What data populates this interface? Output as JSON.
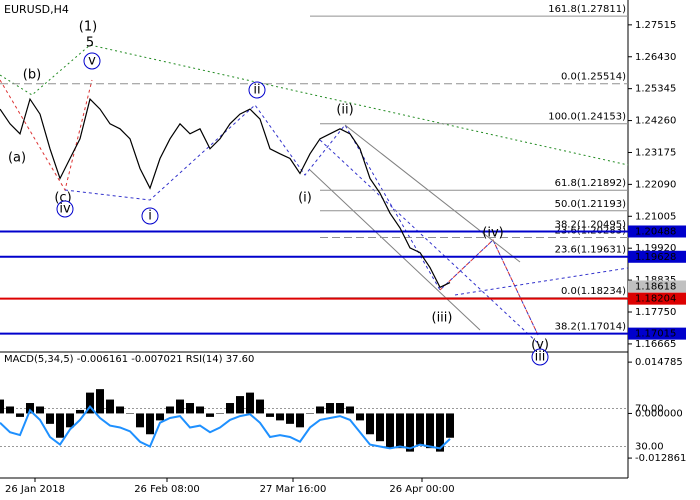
{
  "chart_data": {
    "type": "line",
    "title": "EURUSD,H4",
    "values": [
      1.2465,
      1.2415,
      1.2381,
      1.2499,
      1.2448,
      1.233,
      1.2229,
      1.2297,
      1.2364,
      1.2499,
      1.2465,
      1.2415,
      1.2398,
      1.2364,
      1.2263,
      1.2196,
      1.2297,
      1.2364,
      1.2415,
      1.2381,
      1.2398,
      1.233,
      1.2364,
      1.2415,
      1.2448,
      1.2465,
      1.2431,
      1.233,
      1.2313,
      1.2297,
      1.2246,
      1.2313,
      1.2364,
      1.2381,
      1.2398,
      1.2381,
      1.233,
      1.2229,
      1.2179,
      1.2111,
      1.2061,
      1.1993,
      1.1977,
      1.1926,
      1.1859,
      1.1875
    ],
    "color": "#000000",
    "xlim": [
      0,
      62.8
    ],
    "xticks": [
      {
        "value": 3.5,
        "label": "26 Jan 2018"
      },
      {
        "value": 16.7,
        "label": "26 Feb 08:00"
      },
      {
        "value": 29.3,
        "label": "27 Mar 16:00"
      },
      {
        "value": 42.2,
        "label": "26 Apr 00:00"
      }
    ],
    "ylim": [
      1.1639,
      1.2836
    ],
    "yticks": [
      {
        "value": 1.27515,
        "label": "1.27515"
      },
      {
        "value": 1.2643,
        "label": "1.26430"
      },
      {
        "value": 1.25345,
        "label": "1.25345"
      },
      {
        "value": 1.2426,
        "label": "1.24260"
      },
      {
        "value": 1.23175,
        "label": "1.23175"
      },
      {
        "value": 1.2209,
        "label": "1.22090"
      },
      {
        "value": 1.21005,
        "label": "1.21005"
      },
      {
        "value": 1.1992,
        "label": "1.19920"
      },
      {
        "value": 1.18835,
        "label": "1.18835"
      },
      {
        "value": 1.1775,
        "label": "1.17750"
      },
      {
        "value": 1.16665,
        "label": "1.16665"
      }
    ],
    "levels": [
      {
        "value": 1.20488,
        "label": "1.20488",
        "color": "#0000cc"
      },
      {
        "value": 1.19628,
        "label": "1.19628",
        "color": "#0000cc"
      },
      {
        "value": 1.18618,
        "label": "1.18618",
        "color": "#c0c0c0"
      },
      {
        "value": 1.18204,
        "label": "1.18204",
        "color": "#dd0000"
      },
      {
        "value": 1.17015,
        "label": "1.17015",
        "color": "#0000cc"
      }
    ],
    "fib_levels": [
      {
        "value": 1.27811,
        "label": "161.8(1.27811)"
      },
      {
        "value": 1.25514,
        "label": "0.0(1.25514)"
      },
      {
        "value": 1.24153,
        "label": "100.0(1.24153)"
      },
      {
        "value": 1.21892,
        "label": "61.8(1.21892)"
      },
      {
        "value": 1.21193,
        "label": "50.0(1.21193)"
      },
      {
        "value": 1.20495,
        "label": "38.2(1.20495)"
      },
      {
        "value": 1.20283,
        "label": "23.6(1.20283)"
      },
      {
        "value": 1.19631,
        "label": "23.6(1.19631)"
      },
      {
        "value": 1.18234,
        "label": "0.0(1.18234)"
      },
      {
        "value": 1.17014,
        "label": "38.2(1.17014)"
      }
    ],
    "wave_labels": [
      {
        "text": "(1)",
        "color": "#228b22"
      },
      {
        "text": "5",
        "color": "#cc0000"
      },
      {
        "text": "(b)",
        "color": "#cc0000"
      },
      {
        "text": "v",
        "color": "#0000cc"
      },
      {
        "text": "(a)",
        "color": "#cc0000"
      },
      {
        "text": "(c)",
        "color": "#cc0000"
      },
      {
        "text": "iv",
        "color": "#0000cc"
      },
      {
        "text": "i",
        "color": "#0000cc"
      },
      {
        "text": "ii",
        "color": "#0000cc"
      },
      {
        "text": "(i)",
        "color": "#cc0000"
      },
      {
        "text": "(ii)",
        "color": "#cc0000"
      },
      {
        "text": "(iii)",
        "color": "#cc0000"
      },
      {
        "text": "(iv)",
        "color": "#cc0000"
      },
      {
        "text": "(v)",
        "color": "#cc0000"
      },
      {
        "text": "iii",
        "color": "#0000cc"
      }
    ],
    "indicator": {
      "title": "MACD(5,34,5) -0.006161 -0.007021 RSI(14) 37.60",
      "macd": [
        0.004,
        0.002,
        -0.001,
        0.003,
        0.002,
        -0.003,
        -0.007,
        -0.004,
        0.001,
        0.006,
        0.007,
        0.004,
        0.002,
        0.0,
        -0.004,
        -0.006,
        -0.002,
        0.002,
        0.004,
        0.003,
        0.002,
        -0.001,
        0.0,
        0.003,
        0.005,
        0.006,
        0.004,
        -0.001,
        -0.002,
        -0.003,
        -0.004,
        0.0,
        0.002,
        0.003,
        0.003,
        0.002,
        -0.002,
        -0.006,
        -0.008,
        -0.01,
        -0.01,
        -0.011,
        -0.009,
        -0.01,
        -0.011,
        -0.007
      ],
      "rsi": [
        55,
        45,
        42,
        68,
        58,
        40,
        32,
        48,
        58,
        72,
        60,
        52,
        50,
        46,
        35,
        30,
        55,
        60,
        62,
        50,
        52,
        45,
        50,
        58,
        62,
        64,
        55,
        40,
        42,
        40,
        35,
        50,
        58,
        60,
        62,
        58,
        45,
        32,
        30,
        28,
        30,
        28,
        32,
        30,
        28,
        38
      ],
      "rsi_color": "#1e90ff",
      "ylim": [
        -0.0186,
        0.0177
      ],
      "yticks": [
        {
          "value": 0.014785,
          "label": "0.014785"
        },
        {
          "value": 0.0,
          "label": "0.000000"
        },
        {
          "value": -0.012861,
          "label": "-0.012861"
        }
      ],
      "y2lim": [
        0,
        100
      ],
      "y2ticks": [
        {
          "value": 70,
          "label": "70.00"
        },
        {
          "value": 30,
          "label": "30.00"
        }
      ]
    }
  }
}
